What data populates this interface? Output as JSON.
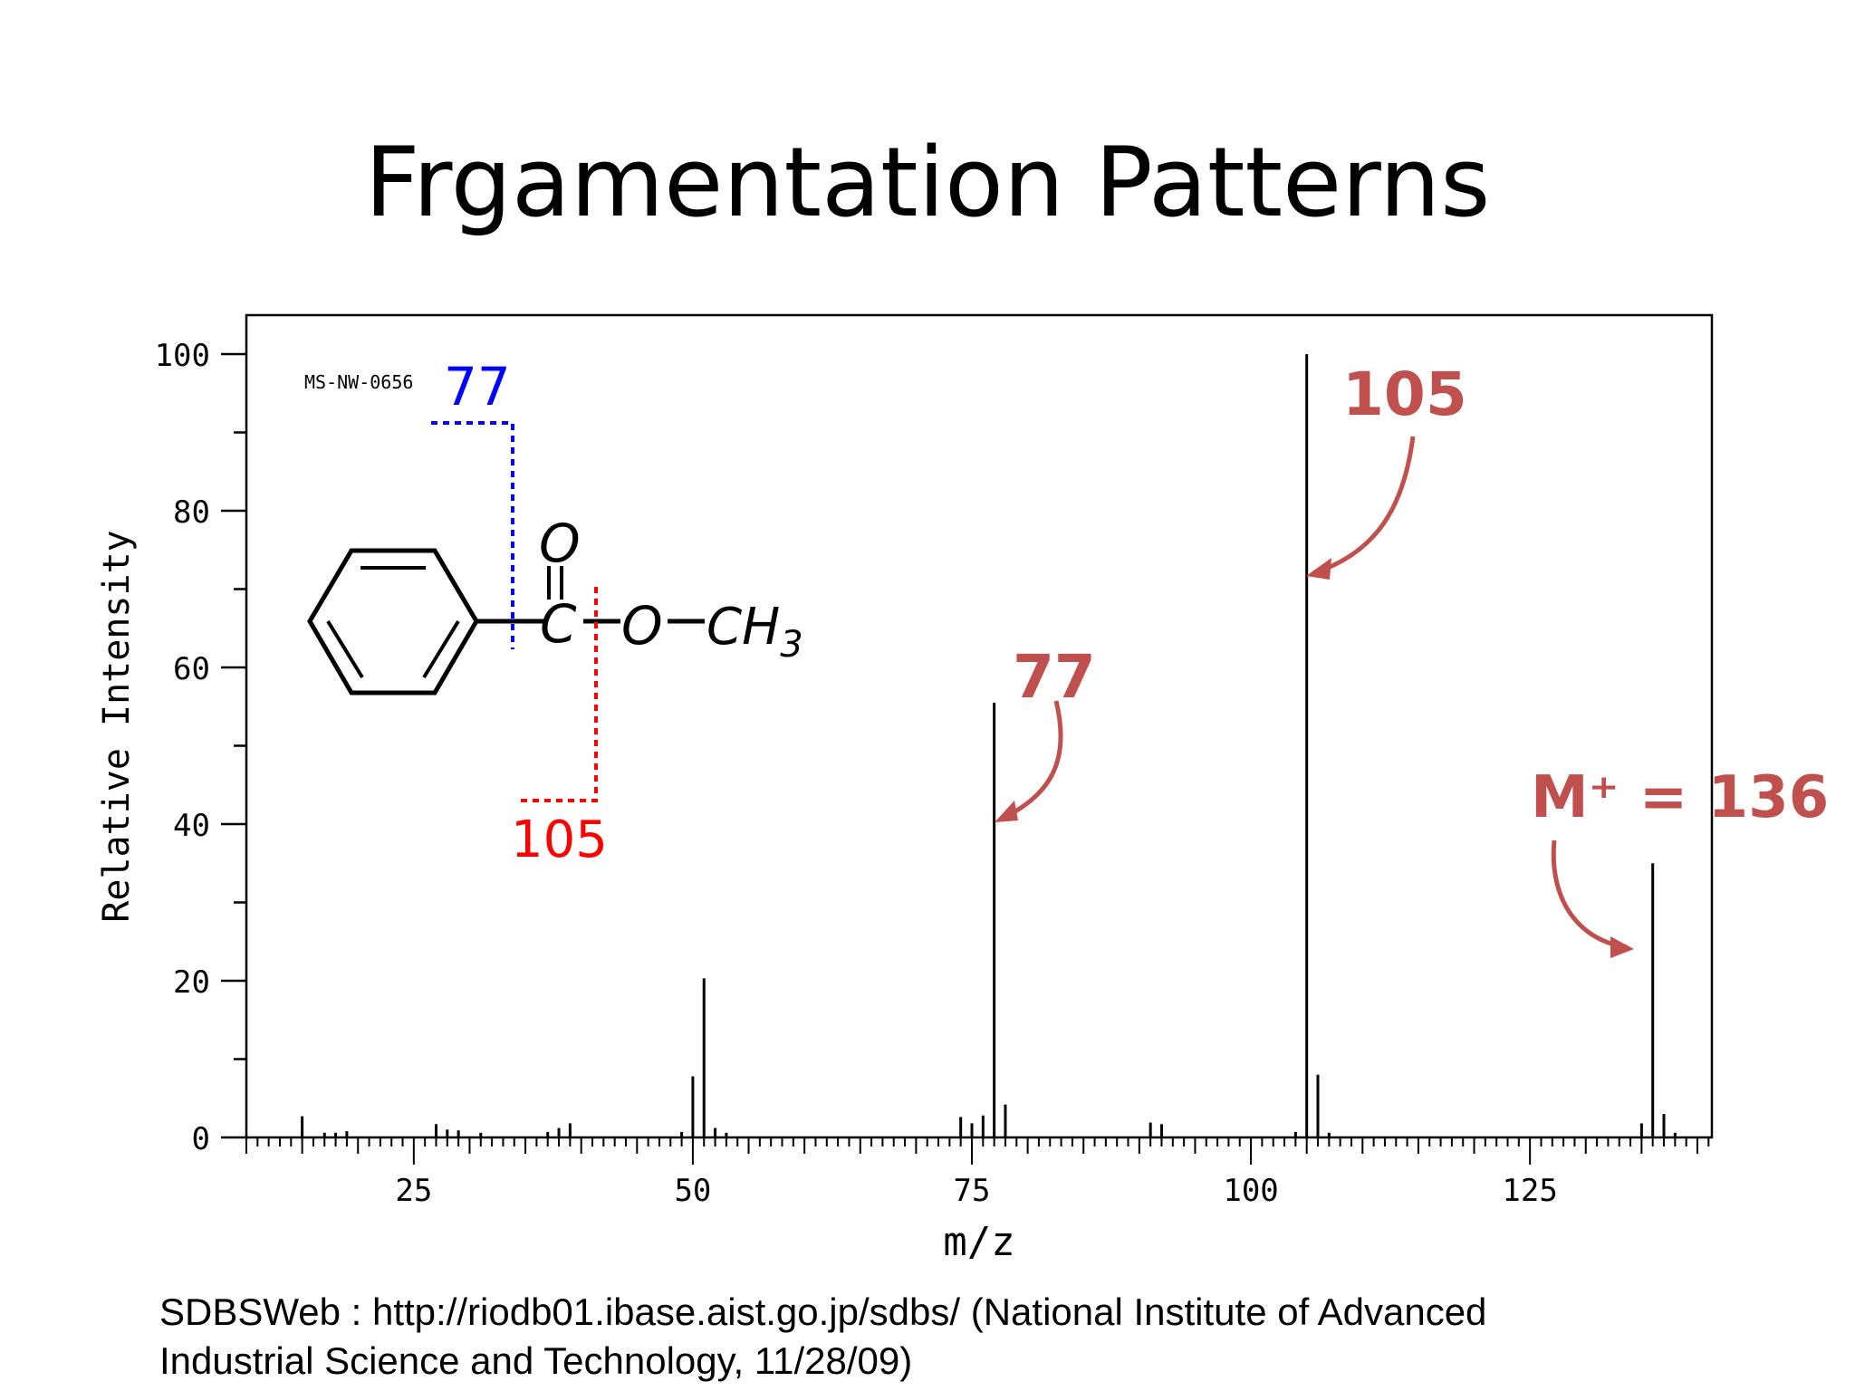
{
  "slide": {
    "title": "Frgamentation Patterns",
    "citation_line1": "SDBSWeb : http://riodb01.ibase.aist.go.jp/sdbs/ (National Institute of Advanced",
    "citation_line2": "Industrial Science and Technology, 11/28/09)"
  },
  "colors": {
    "axis": "#000000",
    "peaks": "#000000",
    "annotation_red": "#c0504d",
    "blue_label": "#0000ff",
    "red_label": "#ff0000"
  },
  "structure": {
    "atom_O_double": "O",
    "atom_C": "C",
    "atom_O": "O",
    "methyl": "CH",
    "methyl_subscript": "3",
    "fragment_blue_label": "77",
    "fragment_red_label": "105"
  },
  "annotations": {
    "peak_105": "105",
    "peak_77": "77",
    "molecular_ion": "M⁺ = 136"
  },
  "chart_data": {
    "type": "bar",
    "title": "",
    "spectrum_id": "MS-NW-0656",
    "xlabel": "m/z",
    "ylabel": "Relative Intensity",
    "xlim": [
      10,
      141
    ],
    "ylim": [
      0,
      105
    ],
    "xticks": [
      25,
      50,
      75,
      100,
      125
    ],
    "yticks": [
      0,
      20,
      40,
      60,
      80,
      100
    ],
    "grid": false,
    "legend": "none",
    "peaks": [
      {
        "mz": 15,
        "intensity": 2.7
      },
      {
        "mz": 17,
        "intensity": 0.6
      },
      {
        "mz": 18,
        "intensity": 0.6
      },
      {
        "mz": 19,
        "intensity": 0.8
      },
      {
        "mz": 27,
        "intensity": 1.7
      },
      {
        "mz": 28,
        "intensity": 1.0
      },
      {
        "mz": 29,
        "intensity": 0.9
      },
      {
        "mz": 31,
        "intensity": 0.6
      },
      {
        "mz": 37,
        "intensity": 0.7
      },
      {
        "mz": 38,
        "intensity": 1.2
      },
      {
        "mz": 39,
        "intensity": 1.8
      },
      {
        "mz": 49,
        "intensity": 0.7
      },
      {
        "mz": 50,
        "intensity": 7.8
      },
      {
        "mz": 51,
        "intensity": 20.3
      },
      {
        "mz": 52,
        "intensity": 1.2
      },
      {
        "mz": 53,
        "intensity": 0.6
      },
      {
        "mz": 74,
        "intensity": 2.6
      },
      {
        "mz": 75,
        "intensity": 1.8
      },
      {
        "mz": 76,
        "intensity": 2.8
      },
      {
        "mz": 77,
        "intensity": 55.5
      },
      {
        "mz": 78,
        "intensity": 4.2
      },
      {
        "mz": 91,
        "intensity": 1.9
      },
      {
        "mz": 92,
        "intensity": 1.7
      },
      {
        "mz": 104,
        "intensity": 0.7
      },
      {
        "mz": 105,
        "intensity": 100
      },
      {
        "mz": 106,
        "intensity": 8.0
      },
      {
        "mz": 107,
        "intensity": 0.6
      },
      {
        "mz": 135,
        "intensity": 1.8
      },
      {
        "mz": 136,
        "intensity": 35.0
      },
      {
        "mz": 137,
        "intensity": 3.0
      },
      {
        "mz": 138,
        "intensity": 0.6
      }
    ]
  }
}
